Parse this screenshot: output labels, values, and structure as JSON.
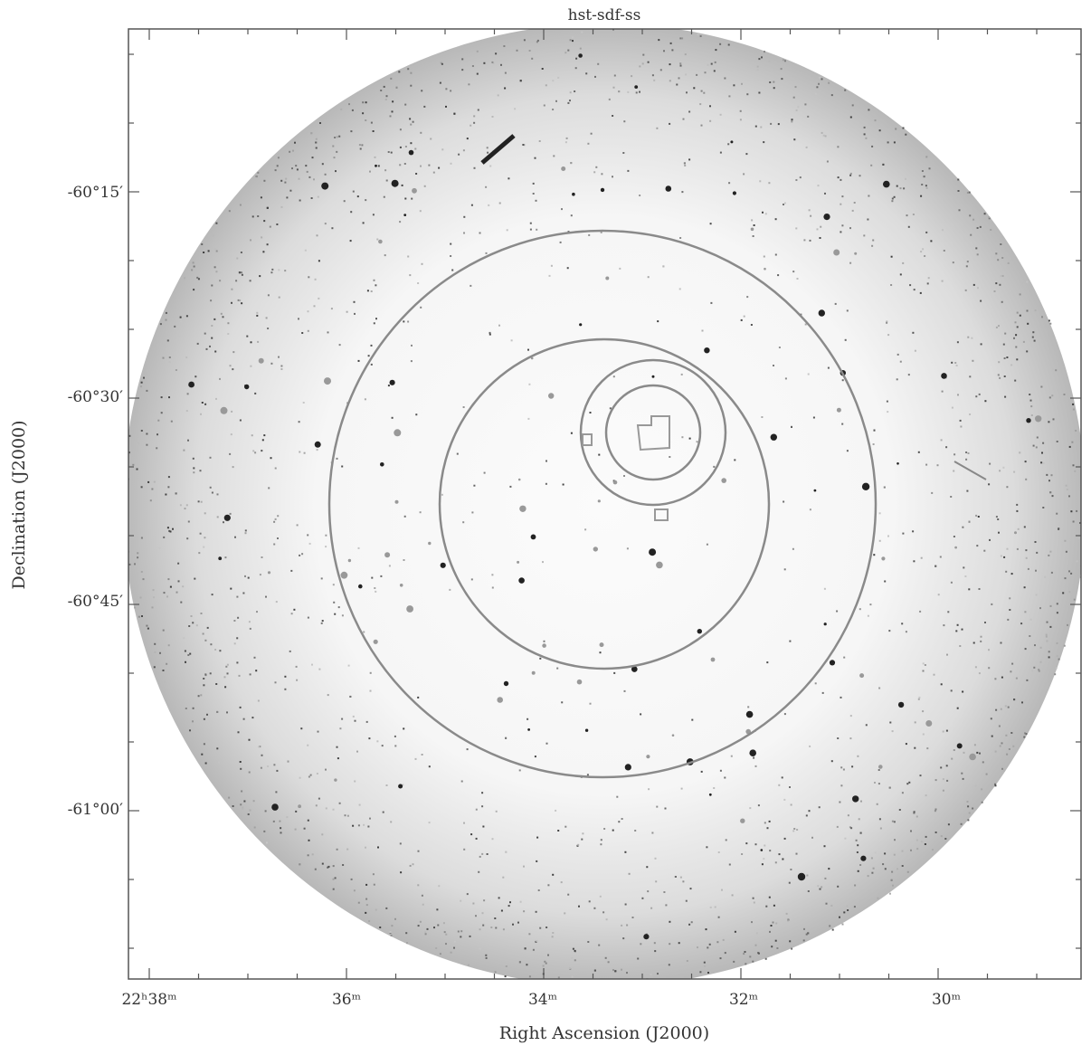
{
  "title": "hst-sdf-ss",
  "x_axis": {
    "label": "Right Ascension (J2000)",
    "tick_labels": [
      "22ʰ38ᵐ",
      "36ᵐ",
      "34ᵐ",
      "32ᵐ",
      "30ᵐ"
    ]
  },
  "y_axis": {
    "label": "Declination (J2000)",
    "tick_labels": [
      "-60°15′",
      "-60°30′",
      "-60°45′",
      "-61°00′"
    ]
  }
}
